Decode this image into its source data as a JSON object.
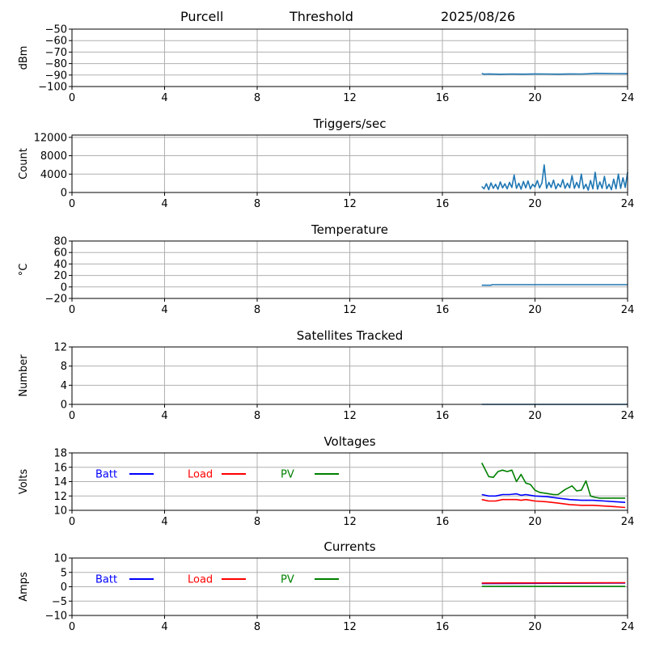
{
  "header": {
    "station": "Purcell",
    "mode": "Threshold",
    "date": "2025/08/26"
  },
  "colors": {
    "series_default": "#1f77b4",
    "batt": "#0000ff",
    "load": "#ff0000",
    "pv": "#008000",
    "grid": "#b0b0b0",
    "axis": "#000000"
  },
  "chart_data": [
    {
      "type": "line",
      "title": "",
      "ylabel": "dBm",
      "xlim": [
        0,
        24
      ],
      "xticks": [
        0,
        4,
        8,
        12,
        16,
        20,
        24
      ],
      "ylim": [
        -100,
        -50
      ],
      "yticks": [
        -100,
        -90,
        -80,
        -70,
        -60,
        -50
      ],
      "ytick_labels": [
        "−100",
        "−90",
        "−80",
        "−70",
        "−60",
        "−50"
      ],
      "grid": true,
      "series": [
        {
          "color": "#1f77b4",
          "x": [
            17.7,
            17.8,
            18.0,
            18.5,
            19.0,
            19.5,
            20.0,
            20.5,
            21.0,
            21.5,
            22.0,
            22.3,
            22.6,
            23.0,
            23.5,
            24.0
          ],
          "y": [
            -88.5,
            -89.2,
            -89.0,
            -89.3,
            -89.1,
            -89.2,
            -89.0,
            -89.1,
            -89.2,
            -89.0,
            -89.1,
            -88.9,
            -88.5,
            -88.6,
            -88.7,
            -88.8
          ]
        }
      ]
    },
    {
      "type": "line",
      "title": "Triggers/sec",
      "ylabel": "Count",
      "xlim": [
        0,
        24
      ],
      "xticks": [
        0,
        4,
        8,
        12,
        16,
        20,
        24
      ],
      "ylim": [
        0,
        12500
      ],
      "yticks": [
        0,
        4000,
        8000,
        12000
      ],
      "ytick_labels": [
        "0",
        "4000",
        "8000",
        "12000"
      ],
      "grid": true,
      "series": [
        {
          "color": "#1f77b4",
          "x": [
            17.7,
            17.8,
            17.9,
            18.0,
            18.1,
            18.2,
            18.3,
            18.4,
            18.5,
            18.6,
            18.7,
            18.8,
            18.9,
            19.0,
            19.1,
            19.2,
            19.3,
            19.4,
            19.5,
            19.6,
            19.7,
            19.8,
            19.9,
            20.0,
            20.1,
            20.2,
            20.3,
            20.4,
            20.5,
            20.6,
            20.7,
            20.8,
            20.9,
            21.0,
            21.1,
            21.2,
            21.3,
            21.4,
            21.5,
            21.6,
            21.7,
            21.8,
            21.9,
            22.0,
            22.1,
            22.2,
            22.3,
            22.4,
            22.5,
            22.6,
            22.7,
            22.8,
            22.9,
            23.0,
            23.1,
            23.2,
            23.3,
            23.4,
            23.5,
            23.6,
            23.7,
            23.8,
            23.9,
            24.0
          ],
          "y": [
            1300,
            800,
            1900,
            600,
            2100,
            900,
            1800,
            700,
            2300,
            1000,
            1900,
            800,
            2200,
            1100,
            3800,
            900,
            2000,
            700,
            2400,
            1000,
            2500,
            800,
            1800,
            1200,
            2600,
            1000,
            2100,
            6000,
            900,
            2200,
            1100,
            2700,
            800,
            1900,
            1200,
            2800,
            900,
            2000,
            1000,
            3700,
            900,
            2200,
            1000,
            4000,
            800,
            1800,
            500,
            2600,
            800,
            4400,
            700,
            2300,
            900,
            3500,
            800,
            1800,
            600,
            2900,
            800,
            4000,
            900,
            3200,
            1100,
            4400
          ]
        }
      ]
    },
    {
      "type": "line",
      "title": "Temperature",
      "ylabel": "°C",
      "xlim": [
        0,
        24
      ],
      "xticks": [
        0,
        4,
        8,
        12,
        16,
        20,
        24
      ],
      "ylim": [
        -20,
        80
      ],
      "yticks": [
        -20,
        0,
        20,
        40,
        60,
        80
      ],
      "ytick_labels": [
        "−20",
        "0",
        "20",
        "40",
        "60",
        "80"
      ],
      "grid": true,
      "series": [
        {
          "color": "#1f77b4",
          "x": [
            17.7,
            18.1,
            18.15,
            24.0
          ],
          "y": [
            3,
            3,
            4,
            4
          ]
        }
      ]
    },
    {
      "type": "line",
      "title": "Satellites Tracked",
      "ylabel": "Number",
      "xlim": [
        0,
        24
      ],
      "xticks": [
        0,
        4,
        8,
        12,
        16,
        20,
        24
      ],
      "ylim": [
        0,
        12
      ],
      "yticks": [
        0,
        4,
        8,
        12
      ],
      "ytick_labels": [
        "0",
        "4",
        "8",
        "12"
      ],
      "grid": true,
      "series": [
        {
          "color": "#1f77b4",
          "x": [
            17.7,
            24.0
          ],
          "y": [
            0,
            0
          ]
        }
      ]
    },
    {
      "type": "line",
      "title": "Voltages",
      "ylabel": "Volts",
      "xlim": [
        0,
        24
      ],
      "xticks": [
        0,
        4,
        8,
        12,
        16,
        20,
        24
      ],
      "ylim": [
        10,
        18
      ],
      "yticks": [
        10,
        12,
        14,
        16,
        18
      ],
      "ytick_labels": [
        "10",
        "12",
        "14",
        "16",
        "18"
      ],
      "grid": true,
      "legend_placement": "top-left, inline",
      "series": [
        {
          "name": "Batt",
          "color": "#0000ff",
          "x": [
            17.7,
            18.0,
            18.3,
            18.6,
            18.9,
            19.2,
            19.4,
            19.6,
            19.8,
            20.0,
            20.5,
            21.0,
            21.5,
            22.0,
            22.5,
            23.0,
            23.5,
            23.9
          ],
          "y": [
            12.2,
            12.0,
            12.0,
            12.2,
            12.2,
            12.3,
            12.1,
            12.2,
            12.1,
            12.0,
            11.9,
            11.7,
            11.5,
            11.4,
            11.4,
            11.3,
            11.2,
            11.1
          ]
        },
        {
          "name": "Load",
          "color": "#ff0000",
          "x": [
            17.7,
            18.0,
            18.3,
            18.6,
            18.9,
            19.2,
            19.4,
            19.6,
            19.8,
            20.0,
            20.5,
            21.0,
            21.5,
            22.0,
            22.5,
            23.0,
            23.5,
            23.9
          ],
          "y": [
            11.5,
            11.3,
            11.3,
            11.5,
            11.5,
            11.5,
            11.4,
            11.5,
            11.4,
            11.3,
            11.2,
            11.0,
            10.8,
            10.7,
            10.7,
            10.6,
            10.5,
            10.4
          ]
        },
        {
          "name": "PV",
          "color": "#008000",
          "x": [
            17.7,
            17.8,
            18.0,
            18.2,
            18.4,
            18.6,
            18.8,
            19.0,
            19.2,
            19.4,
            19.6,
            19.8,
            20.0,
            20.2,
            20.4,
            20.6,
            20.8,
            21.0,
            21.3,
            21.6,
            21.8,
            22.0,
            22.2,
            22.4,
            22.6,
            22.8,
            23.0,
            23.2,
            23.4,
            23.9
          ],
          "y": [
            16.6,
            16.0,
            14.7,
            14.6,
            15.4,
            15.6,
            15.4,
            15.6,
            14.0,
            15.0,
            13.8,
            13.6,
            12.8,
            12.5,
            12.4,
            12.3,
            12.2,
            12.2,
            12.9,
            13.4,
            12.7,
            12.8,
            14.1,
            12.0,
            11.8,
            11.7,
            11.7,
            11.7,
            11.7,
            11.7
          ]
        }
      ]
    },
    {
      "type": "line",
      "title": "Currents",
      "ylabel": "Amps",
      "xlim": [
        0,
        24
      ],
      "xticks": [
        0,
        4,
        8,
        12,
        16,
        20,
        24
      ],
      "ylim": [
        -10,
        10
      ],
      "yticks": [
        -10,
        -5,
        0,
        5,
        10
      ],
      "ytick_labels": [
        "−10",
        "−5",
        "0",
        "5",
        "10"
      ],
      "grid": true,
      "legend_placement": "top-left, inline",
      "series": [
        {
          "name": "Batt",
          "color": "#0000ff",
          "x": [
            17.7,
            23.9
          ],
          "y": [
            1.1,
            1.3
          ]
        },
        {
          "name": "Load",
          "color": "#ff0000",
          "x": [
            17.7,
            23.9
          ],
          "y": [
            1.3,
            1.4
          ]
        },
        {
          "name": "PV",
          "color": "#008000",
          "x": [
            17.7,
            23.9
          ],
          "y": [
            0.1,
            0.1
          ]
        }
      ]
    }
  ]
}
